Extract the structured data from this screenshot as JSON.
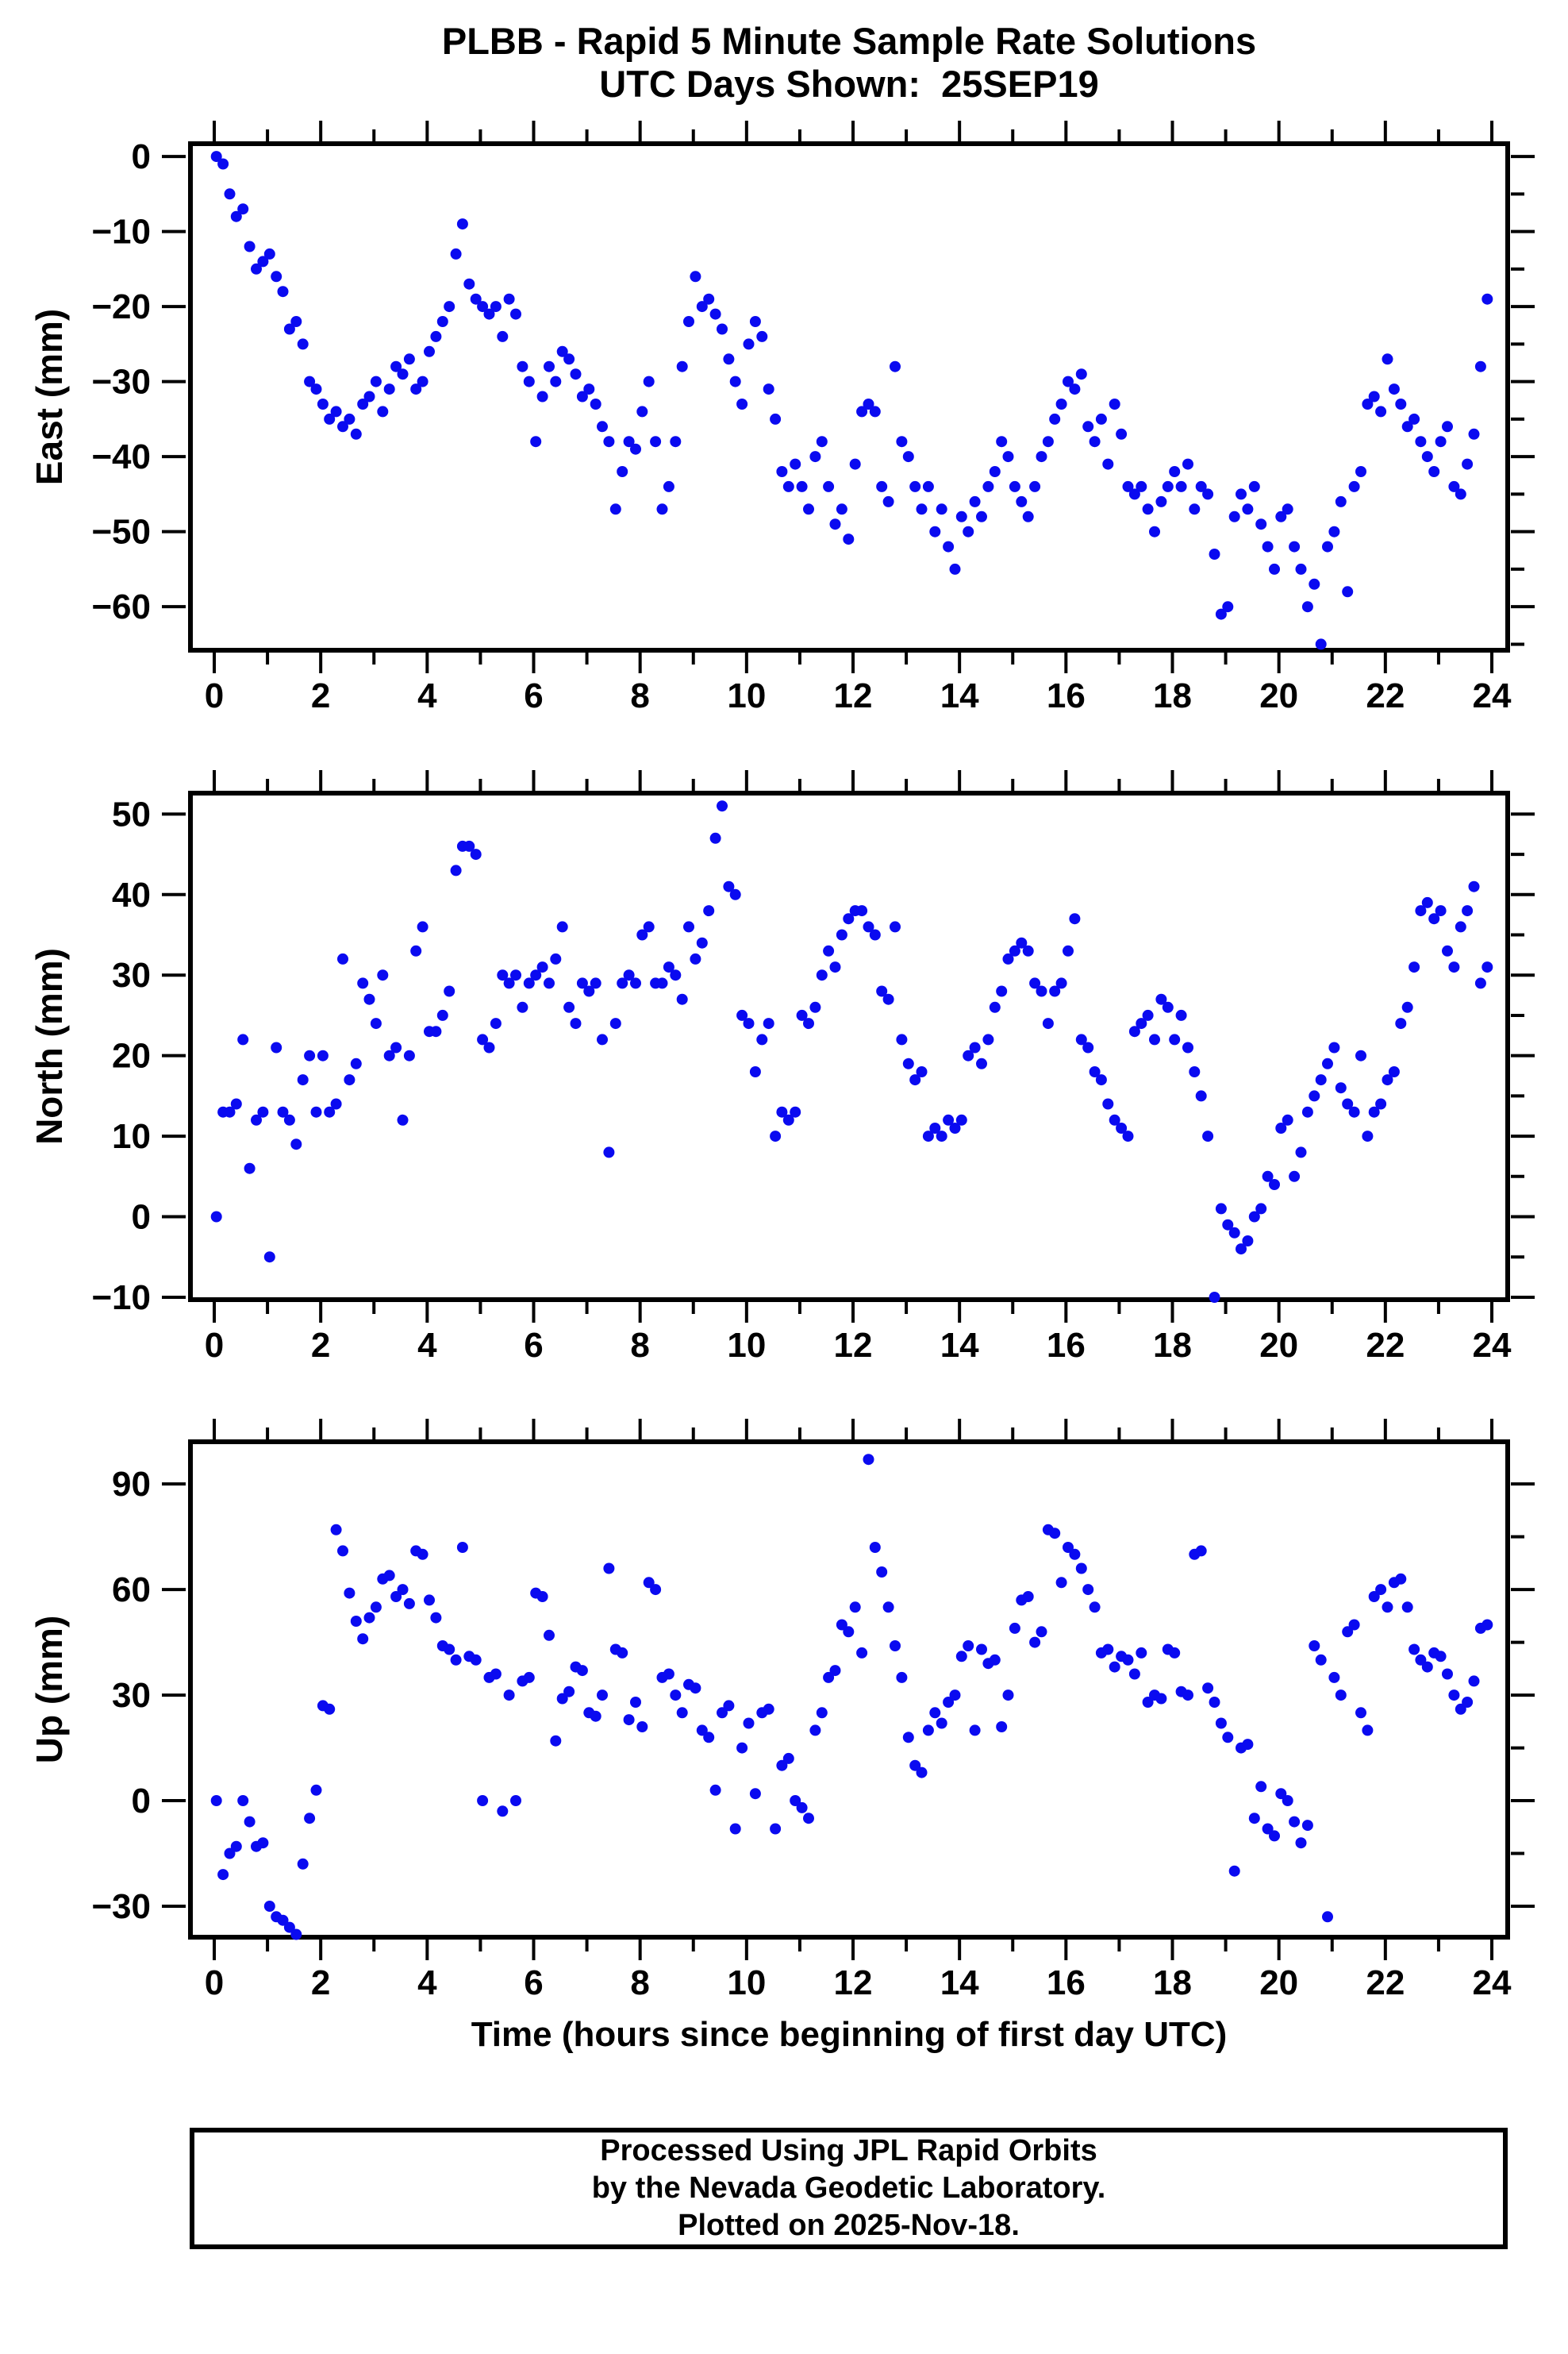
{
  "title": {
    "line1": "PLBB - Rapid 5 Minute Sample Rate Solutions",
    "line2": "UTC Days Shown:  25SEP19"
  },
  "xlabel": "Time (hours since beginning of first day UTC)",
  "footer": {
    "line1": "Processed Using JPL Rapid Orbits",
    "line2": "by the Nevada Geodetic Laboratory.",
    "line3": "Plotted on 2025-Nov-18."
  },
  "point_color": "#0a0af0",
  "frame_color": "#000000",
  "chart_data": [
    {
      "type": "scatter",
      "name": "East",
      "ylabel": "East (mm)",
      "xlabel": "",
      "xlim": [
        -0.45,
        24.45
      ],
      "ylim": [
        -65.8,
        1.7
      ],
      "yticks": [
        0,
        -10,
        -20,
        -30,
        -40,
        -50,
        -60
      ],
      "xticks": [
        0,
        2,
        4,
        6,
        8,
        10,
        12,
        14,
        16,
        18,
        20,
        22,
        24
      ],
      "x_start": 0.04,
      "x_step": 0.125,
      "y": [
        0,
        -1,
        -5,
        -8,
        -7,
        -12,
        -15,
        -14,
        -13,
        -16,
        -18,
        -23,
        -22,
        -25,
        -30,
        -31,
        -33,
        -35,
        -34,
        -36,
        -35,
        -37,
        -33,
        -32,
        -30,
        -34,
        -31,
        -28,
        -29,
        -27,
        -31,
        -30,
        -26,
        -24,
        -22,
        -20,
        -13,
        -9,
        -17,
        -19,
        -20,
        -21,
        -20,
        -24,
        -19,
        -21,
        -28,
        -30,
        -38,
        -32,
        -28,
        -30,
        -26,
        -27,
        -29,
        -32,
        -31,
        -33,
        -36,
        -38,
        -47,
        -42,
        -38,
        -39,
        -34,
        -30,
        -38,
        -47,
        -44,
        -38,
        -28,
        -22,
        -16,
        -20,
        -19,
        -21,
        -23,
        -27,
        -30,
        -33,
        -25,
        -22,
        -24,
        -31,
        -35,
        -42,
        -44,
        -41,
        -44,
        -47,
        -40,
        -38,
        -44,
        -49,
        -47,
        -51,
        -41,
        -34,
        -33,
        -34,
        -44,
        -46,
        -28,
        -38,
        -40,
        -44,
        -47,
        -44,
        -50,
        -47,
        -52,
        -55,
        -48,
        -50,
        -46,
        -48,
        -44,
        -42,
        -38,
        -40,
        -44,
        -46,
        -48,
        -44,
        -40,
        -38,
        -35,
        -33,
        -30,
        -31,
        -29,
        -36,
        -38,
        -35,
        -41,
        -33,
        -37,
        -44,
        -45,
        -44,
        -47,
        -50,
        -46,
        -44,
        -42,
        -44,
        -41,
        -47,
        -44,
        -45,
        -53,
        -61,
        -60,
        -48,
        -45,
        -47,
        -44,
        -49,
        -52,
        -55,
        -48,
        -47,
        -52,
        -55,
        -60,
        -57,
        -65,
        -52,
        -50,
        -46,
        -58,
        -44,
        -42,
        -33,
        -32,
        -34,
        -27,
        -31,
        -33,
        -36,
        -35,
        -38,
        -40,
        -42,
        -38,
        -36,
        -44,
        -45,
        -41,
        -37,
        -28,
        -19
      ]
    },
    {
      "type": "scatter",
      "name": "North",
      "ylabel": "North (mm)",
      "xlabel": "",
      "xlim": [
        -0.45,
        24.45
      ],
      "ylim": [
        -10.3,
        52.6
      ],
      "yticks": [
        50,
        40,
        30,
        20,
        10,
        0,
        -10
      ],
      "xticks": [
        0,
        2,
        4,
        6,
        8,
        10,
        12,
        14,
        16,
        18,
        20,
        22,
        24
      ],
      "x_start": 0.04,
      "x_step": 0.125,
      "y": [
        0,
        13,
        13,
        14,
        22,
        6,
        12,
        13,
        -5,
        21,
        13,
        12,
        9,
        17,
        20,
        13,
        20,
        13,
        14,
        32,
        17,
        19,
        29,
        27,
        24,
        30,
        20,
        21,
        12,
        20,
        33,
        36,
        23,
        23,
        25,
        28,
        43,
        46,
        46,
        45,
        22,
        21,
        24,
        30,
        29,
        30,
        26,
        29,
        30,
        31,
        29,
        32,
        36,
        26,
        24,
        29,
        28,
        29,
        22,
        8,
        24,
        29,
        30,
        29,
        35,
        36,
        29,
        29,
        31,
        30,
        27,
        36,
        32,
        34,
        38,
        47,
        51,
        41,
        40,
        25,
        24,
        18,
        22,
        24,
        10,
        13,
        12,
        13,
        25,
        24,
        26,
        30,
        33,
        31,
        35,
        37,
        38,
        38,
        36,
        35,
        28,
        27,
        36,
        22,
        19,
        17,
        18,
        10,
        11,
        10,
        12,
        11,
        12,
        20,
        21,
        19,
        22,
        26,
        28,
        32,
        33,
        34,
        33,
        29,
        28,
        24,
        28,
        29,
        33,
        37,
        22,
        21,
        18,
        17,
        14,
        12,
        11,
        10,
        23,
        24,
        25,
        22,
        27,
        26,
        22,
        25,
        21,
        18,
        15,
        10,
        -10,
        1,
        -1,
        -2,
        -4,
        -3,
        0,
        1,
        5,
        4,
        11,
        12,
        5,
        8,
        13,
        15,
        17,
        19,
        21,
        16,
        14,
        13,
        20,
        10,
        13,
        14,
        17,
        18,
        24,
        26,
        31,
        38,
        39,
        37,
        38,
        33,
        31,
        36,
        38,
        41,
        29,
        31
      ]
    },
    {
      "type": "scatter",
      "name": "Up",
      "ylabel": "Up (mm)",
      "xlabel": "Time (hours since beginning of first day UTC)",
      "xlim": [
        -0.45,
        24.45
      ],
      "ylim": [
        -38.8,
        102
      ],
      "yticks": [
        90,
        60,
        30,
        0,
        -30
      ],
      "xticks": [
        0,
        2,
        4,
        6,
        8,
        10,
        12,
        14,
        16,
        18,
        20,
        22,
        24
      ],
      "x_start": 0.04,
      "x_step": 0.125,
      "y": [
        0,
        -21,
        -15,
        -13,
        0,
        -6,
        -13,
        -12,
        -30,
        -33,
        -34,
        -36,
        -38,
        -18,
        -5,
        3,
        27,
        26,
        77,
        71,
        59,
        51,
        46,
        52,
        55,
        63,
        64,
        58,
        60,
        56,
        71,
        70,
        57,
        52,
        44,
        43,
        40,
        72,
        41,
        40,
        0,
        35,
        36,
        -3,
        30,
        0,
        34,
        35,
        59,
        58,
        47,
        17,
        29,
        31,
        38,
        37,
        25,
        24,
        30,
        66,
        43,
        42,
        23,
        28,
        21,
        62,
        60,
        35,
        36,
        30,
        25,
        33,
        32,
        20,
        18,
        3,
        25,
        27,
        -8,
        15,
        22,
        2,
        25,
        26,
        -8,
        10,
        12,
        0,
        -2,
        -5,
        20,
        25,
        35,
        37,
        50,
        48,
        55,
        42,
        97,
        72,
        65,
        55,
        44,
        35,
        18,
        10,
        8,
        20,
        25,
        22,
        28,
        30,
        41,
        44,
        20,
        43,
        39,
        40,
        21,
        30,
        49,
        57,
        58,
        45,
        48,
        77,
        76,
        62,
        72,
        70,
        66,
        60,
        55,
        42,
        43,
        38,
        41,
        40,
        36,
        42,
        28,
        30,
        29,
        43,
        42,
        31,
        30,
        70,
        71,
        32,
        28,
        22,
        18,
        -20,
        15,
        16,
        -5,
        4,
        -8,
        -10,
        2,
        0,
        -6,
        -12,
        -7,
        44,
        40,
        -33,
        35,
        30,
        48,
        50,
        25,
        20,
        58,
        60,
        55,
        62,
        63,
        55,
        43,
        40,
        38,
        42,
        41,
        36,
        30,
        26,
        28,
        34,
        49,
        50
      ]
    }
  ]
}
